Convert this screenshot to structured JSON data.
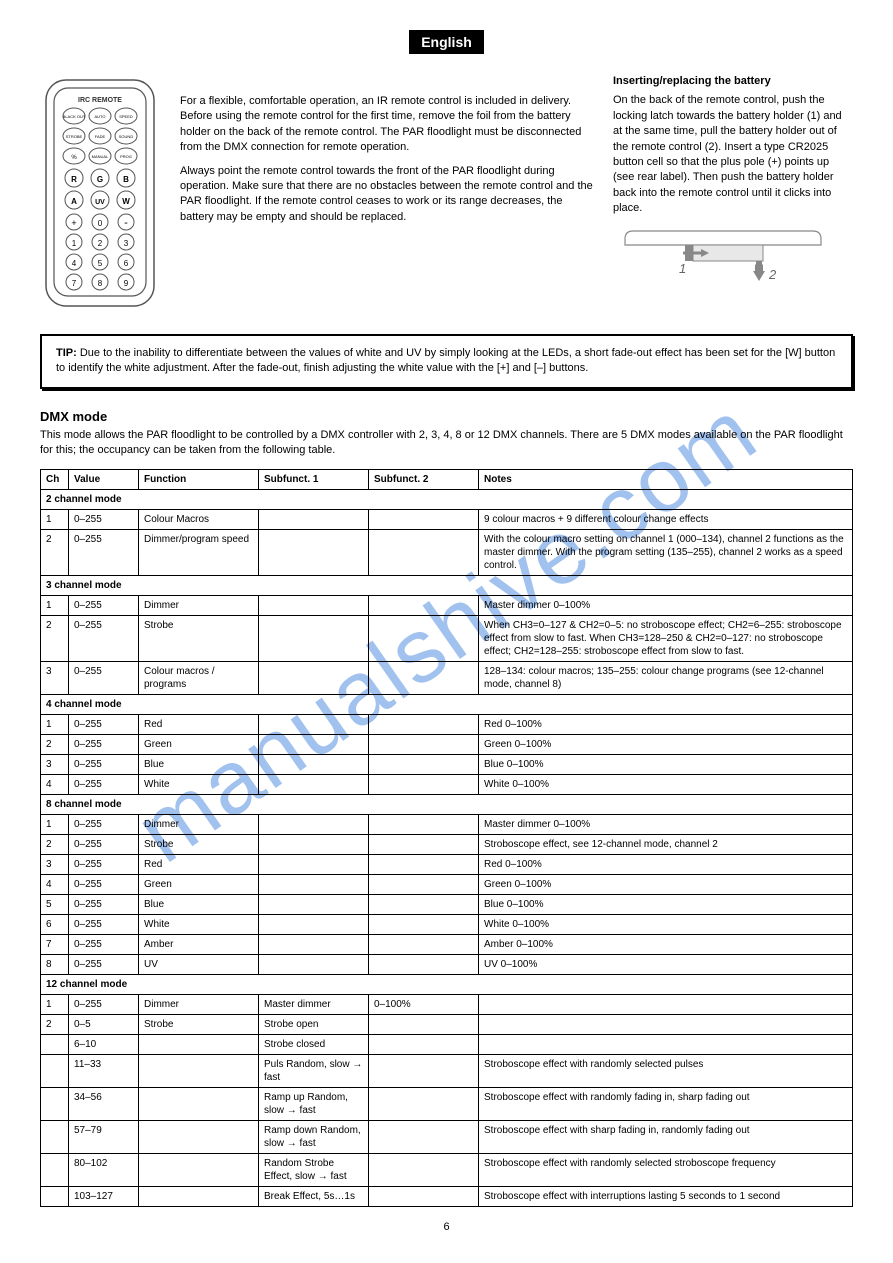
{
  "watermark": "manualshive.com",
  "lang_badge": "English",
  "page_number": "6",
  "top_paragraph_1": "For a flexible, comfortable operation, an IR remote control is included in delivery. Before using the remote control for the first time, remove the foil from the battery holder on the back of the remote control. The PAR floodlight must be disconnected from the DMX connection for remote operation.",
  "top_paragraph_2": "Always point the remote control towards the front of the PAR floodlight during operation. Make sure that there are no obstacles between the remote control and the PAR floodlight. If the remote control ceases to work or its range decreases, the battery may be empty and should be replaced.",
  "battery_heading": "Inserting/replacing the battery",
  "battery_p": "On the back of the remote control, push the locking latch towards the battery holder (1) and at the same time, pull the battery holder out of the remote control (2). Insert a type CR2025 button cell so that the plus pole (+) points up (see rear label). Then push the battery holder back into the remote control until it clicks into place.",
  "battery_fig_1": "1",
  "battery_fig_2": "2",
  "tip_heading": "TIP:",
  "tip_body": "Due to the inability to differentiate between the values of white and UV by simply looking at the LEDs, a short fade-out effect has been set for the [W] button to identify the white adjustment. After the fade-out, finish adjusting the white value with the [+] and [–] buttons.",
  "dmx_heading": "DMX mode",
  "dmx_p": "This mode allows the PAR floodlight to be controlled by a DMX controller with 2, 3, 4, 8 or 12 DMX channels. There are 5 DMX modes available on the PAR floodlight for this; the occupancy can be taken from the following table.",
  "table": {
    "headers": [
      "Ch",
      "Value",
      "Function",
      "Subfunct. 1",
      "Subfunct. 2",
      "Notes"
    ],
    "col_widths": [
      "28px",
      "70px",
      "120px",
      "110px",
      "110px",
      "auto"
    ],
    "rows": [
      {
        "span": true,
        "label": "2 channel mode"
      },
      {
        "ch": "1",
        "val": "0–255",
        "fn": "Colour Macros",
        "s1": "",
        "s2": "",
        "notes": "9 colour macros + 9 different colour change effects"
      },
      {
        "ch": "2",
        "val": "0–255",
        "fn": "Dimmer/program speed",
        "s1": "",
        "s2": "",
        "notes": "With the colour macro setting on channel 1 (000–134), channel 2 functions as the master dimmer. With the program setting (135–255), channel 2 works as a speed control."
      },
      {
        "span": true,
        "label": "3 channel mode"
      },
      {
        "ch": "1",
        "val": "0–255",
        "fn": "Dimmer",
        "s1": "",
        "s2": "",
        "notes": "Master dimmer 0–100%"
      },
      {
        "ch": "2",
        "val": "0–255",
        "fn": "Strobe",
        "s1": "",
        "s2": "",
        "notes": "When CH3=0–127 & CH2=0–5: no stroboscope effect; CH2=6–255: stroboscope effect from slow to fast. When CH3=128–250 & CH2=0–127: no stroboscope effect; CH2=128–255: stroboscope effect from slow to fast."
      },
      {
        "ch": "3",
        "val": "0–255",
        "fn": "Colour macros / programs",
        "s1": "",
        "s2": "",
        "notes": "128–134: colour macros; 135–255: colour change programs (see 12-channel mode, channel 8)"
      },
      {
        "span": true,
        "label": "4 channel mode"
      },
      {
        "ch": "1",
        "val": "0–255",
        "fn": "Red",
        "s1": "",
        "s2": "",
        "notes": "Red 0–100%"
      },
      {
        "ch": "2",
        "val": "0–255",
        "fn": "Green",
        "s1": "",
        "s2": "",
        "notes": "Green 0–100%"
      },
      {
        "ch": "3",
        "val": "0–255",
        "fn": "Blue",
        "s1": "",
        "s2": "",
        "notes": "Blue 0–100%"
      },
      {
        "ch": "4",
        "val": "0–255",
        "fn": "White",
        "s1": "",
        "s2": "",
        "notes": "White 0–100%"
      },
      {
        "span": true,
        "label": "8 channel mode"
      },
      {
        "ch": "1",
        "val": "0–255",
        "fn": "Dimmer",
        "s1": "",
        "s2": "",
        "notes": "Master dimmer 0–100%"
      },
      {
        "ch": "2",
        "val": "0–255",
        "fn": "Strobe",
        "s1": "",
        "s2": "",
        "notes": "Stroboscope effect, see 12-channel mode, channel 2"
      },
      {
        "ch": "3",
        "val": "0–255",
        "fn": "Red",
        "s1": "",
        "s2": "",
        "notes": "Red 0–100%"
      },
      {
        "ch": "4",
        "val": "0–255",
        "fn": "Green",
        "s1": "",
        "s2": "",
        "notes": "Green 0–100%"
      },
      {
        "ch": "5",
        "val": "0–255",
        "fn": "Blue",
        "s1": "",
        "s2": "",
        "notes": "Blue 0–100%"
      },
      {
        "ch": "6",
        "val": "0–255",
        "fn": "White",
        "s1": "",
        "s2": "",
        "notes": "White 0–100%"
      },
      {
        "ch": "7",
        "val": "0–255",
        "fn": "Amber",
        "s1": "",
        "s2": "",
        "notes": "Amber 0–100%"
      },
      {
        "ch": "8",
        "val": "0–255",
        "fn": "UV",
        "s1": "",
        "s2": "",
        "notes": "UV 0–100%"
      },
      {
        "span": true,
        "label": "12 channel mode"
      },
      {
        "ch": "1",
        "val": "0–255",
        "fn": "Dimmer",
        "s1": "Master dimmer",
        "s2": "0–100%",
        "notes": ""
      },
      {
        "ch": "2",
        "val": "0–5",
        "fn": "Strobe",
        "s1": "Strobe open",
        "s2": "",
        "notes": ""
      },
      {
        "ch": "",
        "val": "6–10",
        "fn": "",
        "s1": "Strobe closed",
        "s2": "",
        "notes": ""
      },
      {
        "ch": "",
        "val": "11–33",
        "fn": "",
        "s1": "Puls Random, slow → fast",
        "s2": "",
        "notes": "Stroboscope effect with randomly selected pulses"
      },
      {
        "ch": "",
        "val": "34–56",
        "fn": "",
        "s1": "Ramp up Random, slow → fast",
        "s2": "",
        "notes": "Stroboscope effect with randomly fading in, sharp fading out"
      },
      {
        "ch": "",
        "val": "57–79",
        "fn": "",
        "s1": "Ramp down Random, slow → fast",
        "s2": "",
        "notes": "Stroboscope effect with sharp fading in, randomly fading out"
      },
      {
        "ch": "",
        "val": "80–102",
        "fn": "",
        "s1": "Random Strobe Effect, slow → fast",
        "s2": "",
        "notes": "Stroboscope effect with randomly selected stroboscope frequency"
      },
      {
        "ch": "",
        "val": "103–127",
        "fn": "",
        "s1": "Break Effect, 5s…1s",
        "s2": "",
        "notes": "Stroboscope effect with interruptions lasting 5 seconds to 1 second"
      }
    ],
    "border_color": "#000000",
    "font_size": 10
  },
  "remote": {
    "title": "IRC REMOTE",
    "row1": [
      "BLACK OUT",
      "AUTO",
      "SPEED"
    ],
    "row2": [
      "STROBE",
      "FADE",
      "SOUND"
    ],
    "row3": [
      "%",
      "MANUAL",
      "PROG"
    ],
    "colors": [
      "R",
      "G",
      "B",
      "A",
      "UV",
      "W"
    ],
    "nums": [
      "+",
      "0",
      "-",
      "1",
      "2",
      "3",
      "4",
      "5",
      "6",
      "7",
      "8",
      "9"
    ],
    "outline_color": "#555",
    "fill": "#fff"
  }
}
